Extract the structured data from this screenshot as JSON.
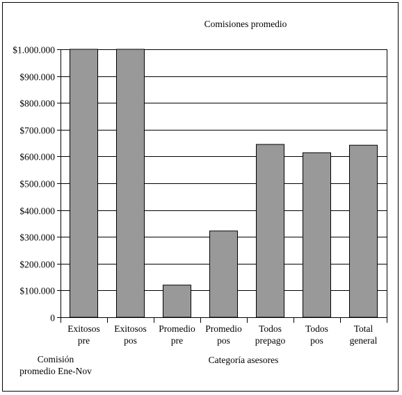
{
  "chart_data": {
    "type": "bar",
    "title": "Comisiones promedio",
    "xlabel": "Categoría asesores",
    "ylabel": "Comisión promedio Ene-Nov",
    "ylabel_lines": [
      "Comisión",
      "promedio Ene-Nov"
    ],
    "categories": [
      "Exitosos pre",
      "Exitosos pos",
      "Promedio pre",
      "Promedio pos",
      "Todos prepago",
      "Todos pos",
      "Total general"
    ],
    "category_lines": [
      [
        "Exitosos",
        "pre"
      ],
      [
        "Exitosos",
        "pos"
      ],
      [
        "Promedio",
        "pre"
      ],
      [
        "Promedio",
        "pos"
      ],
      [
        "Todos",
        "prepago"
      ],
      [
        "Todos",
        "pos"
      ],
      [
        "Total",
        "general"
      ]
    ],
    "values": [
      1000000,
      1000000,
      120000,
      322000,
      645000,
      614000,
      642000
    ],
    "ylim": [
      0,
      1000000
    ],
    "yticks": [
      0,
      100000,
      200000,
      300000,
      400000,
      500000,
      600000,
      700000,
      800000,
      900000,
      1000000
    ],
    "ytick_labels": [
      "0",
      "$100.000",
      "$200.000",
      "$300.000",
      "$400.000",
      "$500.000",
      "$600.000",
      "$700.000",
      "$800.000",
      "$900.000",
      "$1.000.000"
    ],
    "grid": true,
    "legend": "none",
    "colors": {
      "bar": "#999999",
      "bar_stroke": "#000000",
      "grid": "#000000"
    }
  }
}
